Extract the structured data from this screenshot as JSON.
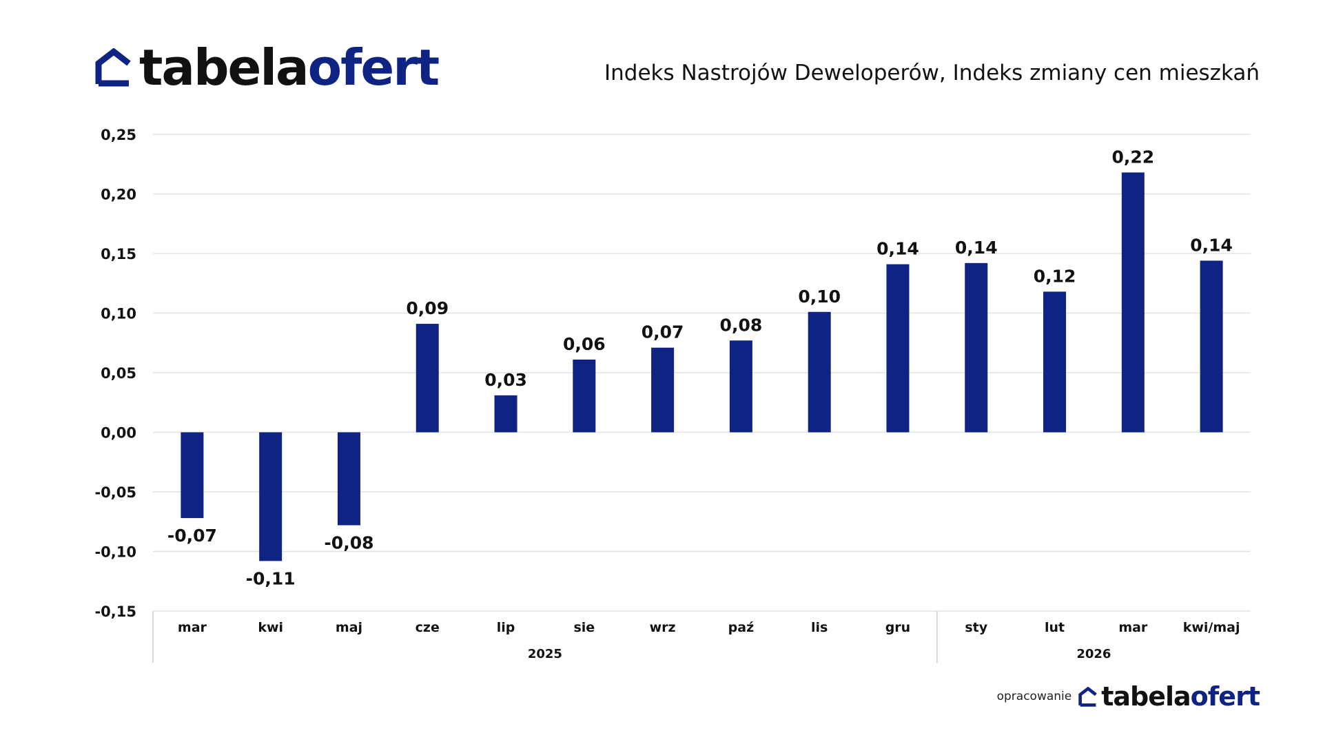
{
  "brand": {
    "part1": "tabela",
    "part2": "ofert",
    "icon": "house-outline-icon",
    "color_dark": "#111111",
    "color_accent": "#0f2383"
  },
  "footer": {
    "note": "opracowanie"
  },
  "chart_data": {
    "type": "bar",
    "title": "Indeks Nastrojów Deweloperów, Indeks zmiany cen mieszkań",
    "xlabel": "",
    "ylabel": "",
    "categories": [
      "mar",
      "kwi",
      "maj",
      "cze",
      "lip",
      "sie",
      "wrz",
      "paź",
      "lis",
      "gru",
      "sty",
      "lut",
      "mar",
      "kwi/maj"
    ],
    "values": [
      -0.072,
      -0.108,
      -0.078,
      0.091,
      0.031,
      0.061,
      0.071,
      0.077,
      0.101,
      0.141,
      0.142,
      0.118,
      0.218,
      0.144
    ],
    "data_labels": [
      "-0,07",
      "-0,11",
      "-0,08",
      "0,09",
      "0,03",
      "0,06",
      "0,07",
      "0,08",
      "0,10",
      "0,14",
      "0,14",
      "0,12",
      "0,22",
      "0,14"
    ],
    "groups": [
      {
        "label": "2025",
        "from": 0,
        "to": 9
      },
      {
        "label": "2026",
        "from": 10,
        "to": 13
      }
    ],
    "ylim": [
      -0.15,
      0.25
    ],
    "yticks": [
      0.25,
      0.2,
      0.15,
      0.1,
      0.05,
      0.0,
      -0.05,
      -0.1,
      -0.15
    ],
    "ytick_labels": [
      "0,25",
      "0,20",
      "0,15",
      "0,10",
      "0,05",
      "0,00",
      "-0,05",
      "-0,10",
      "-0,15"
    ],
    "grid": true,
    "bar_color": "#0f2383"
  }
}
